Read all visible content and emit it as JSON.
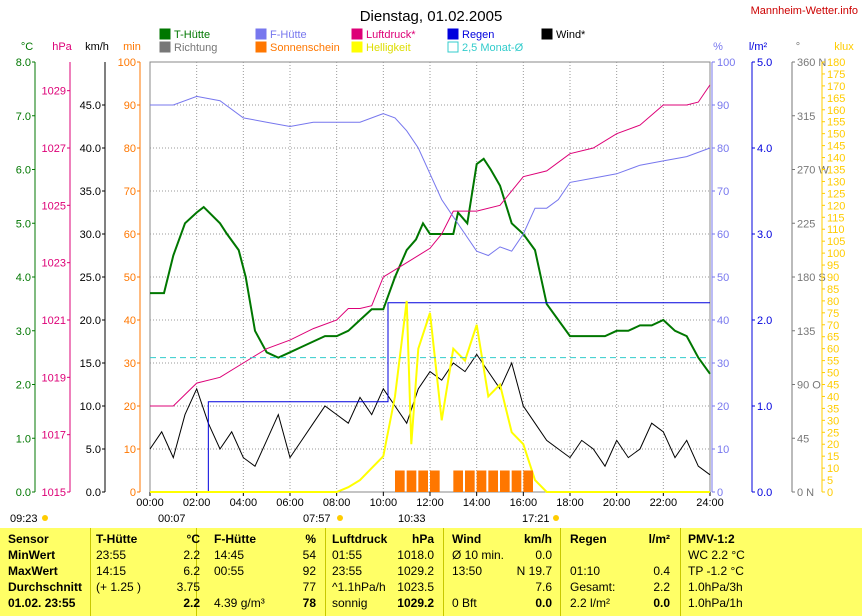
{
  "header": {
    "title": "Dienstag, 01.02.2005",
    "site": "Mannheim-Wetter.info"
  },
  "legend": [
    {
      "label": "T-Hütte",
      "color": "#007700"
    },
    {
      "label": "F-Hütte",
      "color": "#7777ee"
    },
    {
      "label": "Luftdruck*",
      "color": "#dd0077"
    },
    {
      "label": "Regen",
      "color": "#0000dd"
    },
    {
      "label": "Wind*",
      "color": "#000000"
    },
    {
      "label": "Richtung",
      "color": "#777777"
    },
    {
      "label": "Sonnenschein",
      "color": "#ff7700"
    },
    {
      "label": "Helligkeit",
      "color": "#ffff00"
    },
    {
      "label": "2,5 Monat-Ø",
      "color": "#33cccc"
    }
  ],
  "axes": {
    "left": [
      {
        "unit": "°C",
        "color": "#007700",
        "ticks": [
          "0.0",
          "1.0",
          "2.0",
          "3.0",
          "4.0",
          "5.0",
          "6.0",
          "7.0",
          "8.0"
        ]
      },
      {
        "unit": "hPa",
        "color": "#dd0077",
        "ticks": [
          "1015",
          "1017",
          "1019",
          "1021",
          "1023",
          "1025",
          "1027",
          "1029"
        ]
      },
      {
        "unit": "km/h",
        "color": "#000000",
        "ticks": [
          "0.0",
          "5.0",
          "10.0",
          "15.0",
          "20.0",
          "25.0",
          "30.0",
          "35.0",
          "40.0",
          "45.0"
        ]
      },
      {
        "unit": "min",
        "color": "#ff7700",
        "ticks": [
          "0",
          "10",
          "20",
          "30",
          "40",
          "50",
          "60",
          "70",
          "80",
          "90",
          "100"
        ]
      }
    ],
    "right": [
      {
        "unit": "%",
        "color": "#7777ee",
        "ticks": [
          "0",
          "10",
          "20",
          "30",
          "40",
          "50",
          "60",
          "70",
          "80",
          "90",
          "100"
        ]
      },
      {
        "unit": "l/m²",
        "color": "#0000dd",
        "ticks": [
          "0.0",
          "1.0",
          "2.0",
          "3.0",
          "4.0",
          "5.0"
        ]
      },
      {
        "unit": "°",
        "color": "#777777",
        "ticks": [
          "0 N",
          "45",
          "90 O",
          "135",
          "180 S",
          "225",
          "270 W",
          "315",
          "360 N"
        ]
      },
      {
        "unit": "klux",
        "color": "#ffcc00",
        "ticks": [
          "0",
          "5",
          "10",
          "15",
          "20",
          "25",
          "30",
          "35",
          "40",
          "45",
          "50",
          "55",
          "60",
          "65",
          "70",
          "75",
          "80",
          "85",
          "90",
          "95",
          "100",
          "105",
          "110",
          "115",
          "120",
          "125",
          "130",
          "135",
          "140",
          "145",
          "150",
          "155",
          "160",
          "165",
          "170",
          "175",
          "180"
        ]
      }
    ],
    "x_ticks": [
      "00:00",
      "02:00",
      "04:00",
      "06:00",
      "08:00",
      "10:00",
      "12:00",
      "14:00",
      "16:00",
      "18:00",
      "20:00",
      "22:00",
      "24:00"
    ]
  },
  "sun": {
    "sunrise": "07:57",
    "sunset": "17:21",
    "morning_time": "09:23",
    "marker_a": "00:07",
    "marker_b": "10:33"
  },
  "chart_data": {
    "type": "line",
    "title": "Dienstag, 01.02.2005",
    "x_range_h": [
      0,
      24
    ],
    "grid": true,
    "series": [
      {
        "name": "T-Hütte",
        "unit": "°C",
        "ylim": [
          0,
          8
        ],
        "x": [
          0,
          0.6,
          1,
          1.5,
          2,
          2.3,
          3,
          3.3,
          3.8,
          4.1,
          4.5,
          5,
          5.5,
          6,
          6.5,
          7,
          7.5,
          8,
          8.5,
          9,
          9.5,
          10,
          10.5,
          11,
          11.4,
          11.7,
          12,
          12.3,
          13,
          13.2,
          13.6,
          14,
          14.3,
          14.6,
          15,
          15.5,
          16,
          16.5,
          17,
          17.5,
          18,
          18.5,
          19,
          19.5,
          20,
          20.5,
          21,
          21.5,
          22,
          22.5,
          23,
          23.5,
          24
        ],
        "y": [
          3.7,
          3.7,
          4.4,
          5.0,
          5.2,
          5.3,
          5.0,
          4.8,
          4.5,
          4.0,
          3.0,
          2.6,
          2.5,
          2.6,
          2.7,
          2.8,
          2.9,
          2.9,
          3.0,
          3.2,
          3.4,
          3.4,
          4.0,
          4.5,
          4.7,
          5.0,
          4.8,
          4.8,
          4.8,
          5.2,
          5.0,
          6.1,
          6.2,
          6.0,
          5.7,
          5.0,
          4.8,
          4.5,
          3.5,
          3.2,
          2.9,
          2.9,
          2.9,
          2.9,
          3.0,
          3.0,
          3.1,
          3.1,
          3.2,
          3.0,
          2.9,
          2.5,
          2.2
        ]
      },
      {
        "name": "Luftdruck*",
        "unit": "hPa",
        "ylim": [
          1015,
          1030
        ],
        "x": [
          0,
          1,
          2,
          3,
          4,
          5,
          6,
          7,
          8,
          8.5,
          9,
          9.5,
          10,
          11,
          12,
          12.5,
          13,
          14,
          15,
          16,
          17,
          18,
          19,
          20,
          21,
          22,
          23,
          23.5,
          24
        ],
        "y": [
          1018.0,
          1018.0,
          1018.8,
          1019.0,
          1019.5,
          1020.0,
          1020.3,
          1020.7,
          1021.0,
          1021.4,
          1021.4,
          1021.5,
          1022.5,
          1023.0,
          1023.5,
          1024.0,
          1024.8,
          1024.8,
          1025.0,
          1026.0,
          1026.2,
          1026.8,
          1027.0,
          1027.5,
          1027.8,
          1028.5,
          1028.5,
          1028.6,
          1029.2
        ]
      },
      {
        "name": "F-Hütte",
        "unit": "%",
        "ylim": [
          0,
          100
        ],
        "x": [
          0,
          1,
          2,
          3,
          4,
          5,
          6,
          7,
          8,
          9,
          10,
          10.5,
          11,
          11.5,
          12,
          12.5,
          13,
          13.5,
          14,
          14.5,
          15,
          15.5,
          16,
          16.5,
          17,
          17.5,
          18,
          19,
          20,
          21,
          22,
          23,
          24
        ],
        "y": [
          90,
          90,
          92,
          91,
          87,
          86,
          85,
          86,
          86,
          86,
          88,
          87,
          84,
          80,
          74,
          68,
          64,
          60,
          56,
          55,
          57,
          56,
          60,
          66,
          66,
          68,
          72,
          73,
          74,
          76,
          77,
          78,
          80
        ]
      },
      {
        "name": "Wind*",
        "unit": "km/h",
        "ylim": [
          0,
          50
        ],
        "x": [
          0,
          0.5,
          1,
          1.5,
          2,
          2.5,
          3,
          3.5,
          4,
          4.5,
          5,
          5.5,
          6,
          6.5,
          7,
          7.5,
          8,
          8.5,
          9,
          9.5,
          10,
          10.5,
          11,
          11.5,
          12,
          12.5,
          13,
          13.5,
          14,
          14.5,
          15,
          15.5,
          16,
          16.5,
          17,
          17.5,
          18,
          18.5,
          19,
          19.5,
          20,
          20.5,
          21,
          21.5,
          22,
          22.5,
          23,
          23.5,
          24
        ],
        "y": [
          5,
          7,
          4,
          9,
          12,
          8,
          5,
          7,
          4,
          3,
          6,
          9,
          4,
          6,
          8,
          10,
          9,
          8,
          11,
          9,
          12,
          10,
          8,
          12,
          14,
          13,
          15,
          14,
          16,
          14,
          12,
          15,
          10,
          8,
          6,
          5,
          4,
          6,
          5,
          3,
          6,
          4,
          5,
          8,
          7,
          4,
          6,
          3,
          2
        ]
      },
      {
        "name": "Regen",
        "unit": "l/m²",
        "ylim": [
          0,
          5
        ],
        "x": [
          0,
          1.8,
          2.5,
          9.8,
          10.2,
          24
        ],
        "y": [
          0,
          0,
          1.05,
          1.05,
          2.2,
          2.2
        ]
      },
      {
        "name": "Helligkeit",
        "unit": "klux",
        "ylim": [
          0,
          180
        ],
        "x": [
          0,
          8,
          8.5,
          9,
          9.5,
          10,
          10.5,
          11,
          11.2,
          11.5,
          12,
          12.5,
          13,
          13.5,
          14,
          14.5,
          15,
          15.5,
          16,
          16.5,
          17,
          24
        ],
        "y": [
          0,
          0,
          2,
          5,
          10,
          15,
          40,
          80,
          20,
          60,
          75,
          30,
          60,
          55,
          70,
          40,
          45,
          25,
          20,
          5,
          0,
          0
        ]
      },
      {
        "name": "Sonnenschein",
        "unit": "min",
        "ylim": [
          0,
          100
        ],
        "x": [
          10.5,
          11,
          11.5,
          12,
          12.5,
          13,
          13.5,
          14,
          14.5,
          15,
          15.5,
          16,
          16.5
        ],
        "y": [
          5,
          5,
          5,
          5,
          0,
          5,
          5,
          5,
          5,
          5,
          5,
          5,
          0
        ]
      },
      {
        "name": "2,5 Monat-Ø",
        "unit": "°C",
        "ylim": [
          0,
          8
        ],
        "x": [
          0,
          24
        ],
        "y": [
          2.5,
          2.5
        ]
      }
    ]
  },
  "table": {
    "rows": [
      [
        "Sensor",
        "T-Hütte",
        "°C",
        "F-Hütte",
        "%",
        "Luftdruck",
        "hPa",
        "Wind",
        "km/h",
        "Regen",
        "l/m²",
        "PMV-1:2"
      ],
      [
        "MinWert",
        "23:55",
        "2.2",
        "14:45",
        "54",
        "01:55",
        "1018.0",
        "Ø 10 min.",
        "0.0",
        "",
        "",
        "WC 2.2 °C"
      ],
      [
        "MaxWert",
        "14:15",
        "6.2",
        "00:55",
        "92",
        "23:55",
        "1029.2",
        "13:50",
        "N 19.7",
        "01:10",
        "0.4",
        "TP -1.2 °C"
      ],
      [
        "Durchschnitt",
        "(+ 1.25 )",
        "3.75",
        "",
        "77",
        "^1.1hPa/h",
        "1023.5",
        "",
        "7.6",
        "Gesamt:",
        "2.2",
        "1.0hPa/3h"
      ],
      [
        "01.02. 23:55",
        "",
        "2.2",
        "4.39 g/m³",
        "78",
        "sonnig",
        "1029.2",
        "0 Bft",
        "0.0",
        "2.2 l/m²",
        "0.0",
        "1.0hPa/1h"
      ]
    ]
  }
}
